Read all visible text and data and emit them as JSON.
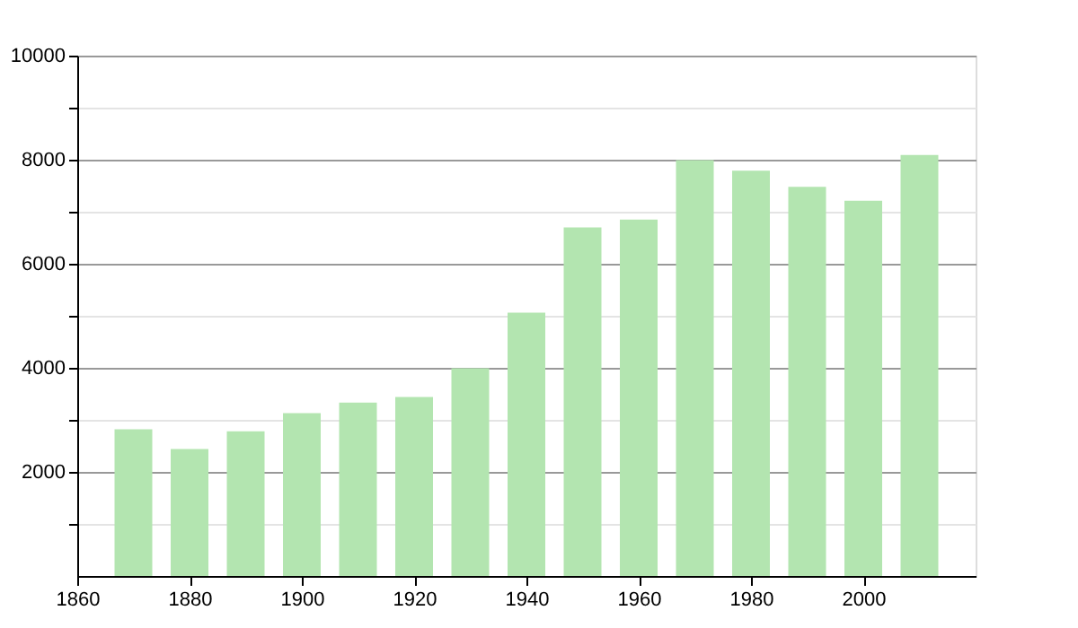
{
  "chart_data": {
    "type": "bar",
    "x": [
      1870,
      1880,
      1890,
      1900,
      1910,
      1920,
      1930,
      1940,
      1950,
      1960,
      1970,
      1980,
      1990,
      2000,
      2010
    ],
    "values": [
      2820,
      2440,
      2780,
      3130,
      3330,
      3440,
      3990,
      5060,
      6700,
      6850,
      7990,
      7790,
      7480,
      7210,
      8090
    ],
    "color": "#b3e5b0",
    "xlim": [
      1860,
      2020
    ],
    "xticks": [
      1860,
      1880,
      1900,
      1920,
      1940,
      1960,
      1980,
      2000
    ],
    "ylim": [
      0,
      10000
    ],
    "yticks": [
      {
        "value": 1000,
        "label": null
      },
      2000,
      {
        "value": 3000,
        "label": null
      },
      4000,
      {
        "value": 5000,
        "label": null
      },
      6000,
      {
        "value": 7000,
        "label": null
      },
      8000,
      {
        "value": 9000,
        "label": null
      },
      10000
    ],
    "grid": "y"
  }
}
